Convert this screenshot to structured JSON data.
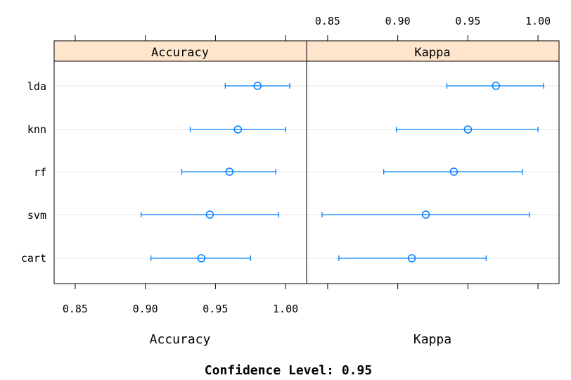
{
  "chart_data": {
    "type": "dotplot-with-error-bars",
    "footer": "Confidence Level: 0.95",
    "categories": [
      "lda",
      "knn",
      "rf",
      "svm",
      "cart"
    ],
    "xlim": [
      0.835,
      1.015
    ],
    "ticks": [
      0.85,
      0.9,
      0.95,
      1.0
    ],
    "tick_labels": [
      "0.85",
      "0.90",
      "0.95",
      "1.00"
    ],
    "colors": {
      "strip": "#ffe5cc",
      "marker": "#0080ff",
      "grid": "#e6e6e6"
    },
    "panels": [
      {
        "name": "Accuracy",
        "strip_label": "Accuracy",
        "xlabel": "Accuracy",
        "points": [
          {
            "category": "lda",
            "value": 0.98,
            "lower": 0.957,
            "upper": 1.003
          },
          {
            "category": "knn",
            "value": 0.966,
            "lower": 0.932,
            "upper": 1.0
          },
          {
            "category": "rf",
            "value": 0.96,
            "lower": 0.926,
            "upper": 0.993
          },
          {
            "category": "svm",
            "value": 0.946,
            "lower": 0.897,
            "upper": 0.995
          },
          {
            "category": "cart",
            "value": 0.94,
            "lower": 0.904,
            "upper": 0.975
          }
        ]
      },
      {
        "name": "Kappa",
        "strip_label": "Kappa",
        "xlabel": "Kappa",
        "points": [
          {
            "category": "lda",
            "value": 0.97,
            "lower": 0.935,
            "upper": 1.004
          },
          {
            "category": "knn",
            "value": 0.95,
            "lower": 0.899,
            "upper": 1.0
          },
          {
            "category": "rf",
            "value": 0.94,
            "lower": 0.89,
            "upper": 0.989
          },
          {
            "category": "svm",
            "value": 0.92,
            "lower": 0.846,
            "upper": 0.994
          },
          {
            "category": "cart",
            "value": 0.91,
            "lower": 0.858,
            "upper": 0.963
          }
        ]
      }
    ]
  }
}
